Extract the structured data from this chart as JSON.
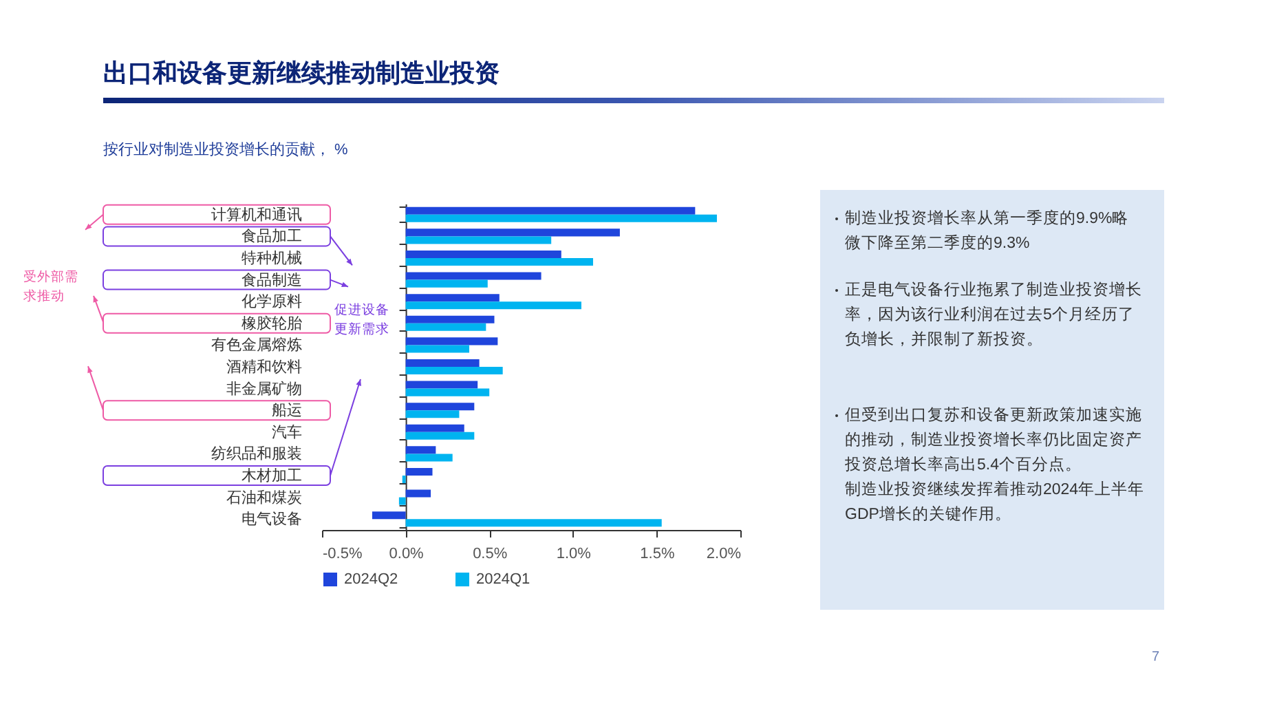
{
  "chart_data": {
    "type": "bar",
    "orientation": "horizontal",
    "title": "出口和设备更新继续推动制造业投资",
    "subtitle": "按行业对制造业投资增长的贡献， %",
    "categories": [
      "计算机和通讯",
      "食品加工",
      "特种机械",
      "食品制造",
      "化学原料",
      "橡胶轮胎",
      "有色金属熔炼",
      "酒精和饮料",
      "非金属矿物",
      "船运",
      "汽车",
      "纺织品和服装",
      "木材加工",
      "石油和煤炭",
      "电气设备"
    ],
    "series": [
      {
        "name": "2024Q2",
        "color": "#1f45dc",
        "values": [
          1.73,
          1.28,
          0.93,
          0.81,
          0.56,
          0.53,
          0.55,
          0.44,
          0.43,
          0.41,
          0.35,
          0.18,
          0.16,
          0.15,
          -0.2
        ]
      },
      {
        "name": "2024Q1",
        "color": "#00b4f0",
        "values": [
          1.86,
          0.87,
          1.12,
          0.49,
          1.05,
          0.48,
          0.38,
          0.58,
          0.5,
          0.32,
          0.41,
          0.28,
          -0.02,
          -0.04,
          1.53
        ]
      }
    ],
    "xlim": [
      -0.5,
      2.0
    ],
    "xticks": [
      {
        "value": -0.5,
        "label": "-0.5%"
      },
      {
        "value": 0,
        "label": "0.0%"
      },
      {
        "value": 0.5,
        "label": "0.5%"
      },
      {
        "value": 1.0,
        "label": "1.0%"
      },
      {
        "value": 1.5,
        "label": "1.5%"
      },
      {
        "value": 2.0,
        "label": "2.0%"
      }
    ],
    "legend": "bottom",
    "annotations": [
      "受外部需求推动",
      "促进设备更新需求",
      "制造业投资增长率从第一季度的9.9%略微下降至第二季度的9.3%",
      "正是电气设备行业拖累了制造业投资增长率，因为该行业利润在过去5个月经历了负增长，并限制了新投资。",
      "但受到出口复苏和设备更新政策加速实施的推动，制造业投资增长率仍比固定资产投资总增长率高出5.4个百分点。",
      "制造业投资继续发挥着推动2024年上半年GDP增长的关键作用。",
      "7"
    ]
  }
}
